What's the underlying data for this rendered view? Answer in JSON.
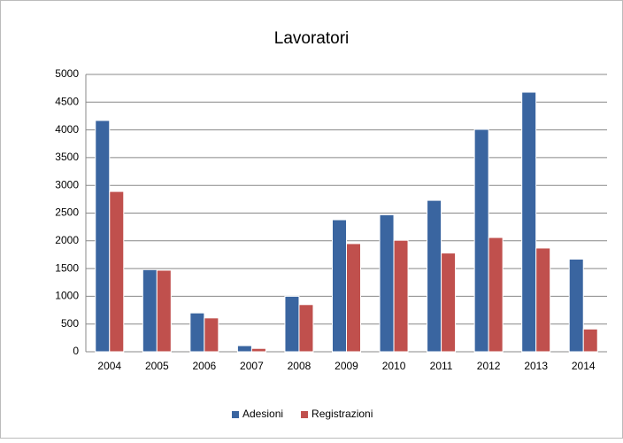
{
  "chart_data": {
    "type": "bar",
    "title": "Lavoratori",
    "categories": [
      "2004",
      "2005",
      "2006",
      "2007",
      "2008",
      "2009",
      "2010",
      "2011",
      "2012",
      "2013",
      "2014"
    ],
    "series": [
      {
        "name": "Adesioni",
        "color": "#3a65a0",
        "values": [
          4170,
          1480,
          700,
          110,
          1000,
          2380,
          2470,
          2730,
          4010,
          4680,
          1670
        ]
      },
      {
        "name": "Registrazioni",
        "color": "#c0504d",
        "values": [
          2890,
          1470,
          610,
          60,
          850,
          1950,
          2010,
          1780,
          2060,
          1870,
          410
        ]
      }
    ],
    "ylim": [
      0,
      5000
    ],
    "yticks": [
      0,
      500,
      1000,
      1500,
      2000,
      2500,
      3000,
      3500,
      4000,
      4500,
      5000
    ],
    "grid": true,
    "legend": "bottom"
  }
}
